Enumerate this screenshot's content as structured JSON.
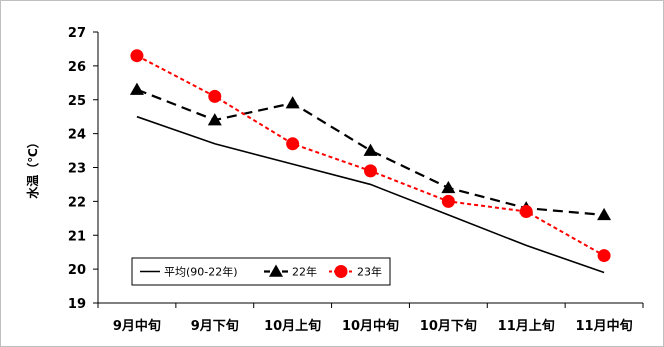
{
  "chart_data": {
    "type": "line",
    "title": "",
    "xlabel": "",
    "ylabel": "水温（℃）",
    "categories": [
      "9月中旬",
      "9月下旬",
      "10月上旬",
      "10月中旬",
      "10月下旬",
      "11月上旬",
      "11月中旬"
    ],
    "ylim": [
      19,
      27
    ],
    "yticks": [
      19,
      20,
      21,
      22,
      23,
      24,
      25,
      26,
      27
    ],
    "grid": false,
    "legend_position": "bottom-left",
    "series": [
      {
        "name": "平均(90-22年)",
        "values": [
          24.5,
          23.7,
          23.1,
          22.5,
          21.6,
          20.7,
          19.9
        ],
        "color": "#000000",
        "style": "solid",
        "marker": "none"
      },
      {
        "name": "22年",
        "values": [
          25.3,
          24.4,
          24.9,
          23.5,
          22.4,
          21.8,
          21.6
        ],
        "color": "#000000",
        "style": "dashed",
        "marker": "triangle"
      },
      {
        "name": "23年",
        "values": [
          26.3,
          25.1,
          23.7,
          22.9,
          22.0,
          21.7,
          20.4
        ],
        "color": "#ff0000",
        "style": "dotted",
        "marker": "circle"
      }
    ]
  }
}
